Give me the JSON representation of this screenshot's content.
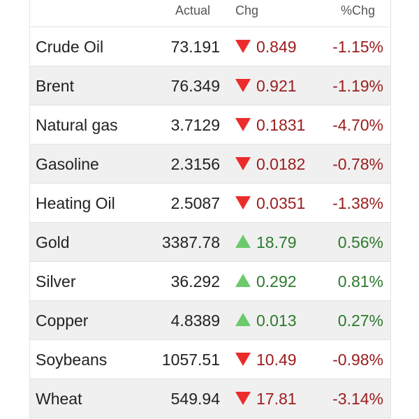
{
  "columns": {
    "actual": "Actual",
    "chg": "Chg",
    "pct": "%Chg"
  },
  "colors": {
    "down_arrow": "#ec2b2b",
    "up_arrow": "#6cc96c",
    "negative_text": "#9b1c1c",
    "positive_text": "#2d7a2d"
  },
  "rows": [
    {
      "name": "Crude Oil",
      "actual": "73.191",
      "chg": "0.849",
      "pct": "-1.15%",
      "direction": "down"
    },
    {
      "name": "Brent",
      "actual": "76.349",
      "chg": "0.921",
      "pct": "-1.19%",
      "direction": "down"
    },
    {
      "name": "Natural gas",
      "actual": "3.7129",
      "chg": "0.1831",
      "pct": "-4.70%",
      "direction": "down"
    },
    {
      "name": "Gasoline",
      "actual": "2.3156",
      "chg": "0.0182",
      "pct": "-0.78%",
      "direction": "down"
    },
    {
      "name": "Heating Oil",
      "actual": "2.5087",
      "chg": "0.0351",
      "pct": "-1.38%",
      "direction": "down"
    },
    {
      "name": "Gold",
      "actual": "3387.78",
      "chg": "18.79",
      "pct": "0.56%",
      "direction": "up"
    },
    {
      "name": "Silver",
      "actual": "36.292",
      "chg": "0.292",
      "pct": "0.81%",
      "direction": "up"
    },
    {
      "name": "Copper",
      "actual": "4.8389",
      "chg": "0.013",
      "pct": "0.27%",
      "direction": "up"
    },
    {
      "name": "Soybeans",
      "actual": "1057.51",
      "chg": "10.49",
      "pct": "-0.98%",
      "direction": "down"
    },
    {
      "name": "Wheat",
      "actual": "549.94",
      "chg": "17.81",
      "pct": "-3.14%",
      "direction": "down"
    }
  ]
}
